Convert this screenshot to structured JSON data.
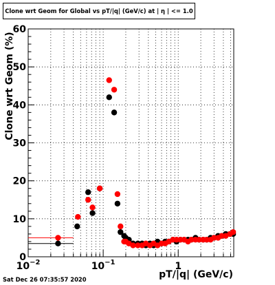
{
  "chart_data": {
    "type": "scatter",
    "title": "Clone wrt Geom for Global vs pT/|q| (GeV/c) at | η | <= 1.0",
    "xlabel": "pT/|q| (GeV/c)",
    "ylabel": "Clone wrt Geom (%)",
    "x_scale": "log",
    "xlim": [
      0.01,
      5.5
    ],
    "ylim": [
      0,
      60
    ],
    "grid": true,
    "y_ticks": [
      0,
      10,
      20,
      30,
      40,
      50,
      60
    ],
    "y_tick_labels": [
      "0",
      "10",
      "20",
      "30",
      "40",
      "50",
      "60"
    ],
    "x_major_ticks": [
      0.01,
      0.1,
      1
    ],
    "x_tick_labels": [
      {
        "base": "10",
        "exp": "−2"
      },
      {
        "base": "10",
        "exp": "−1"
      },
      {
        "base": "1",
        "exp": ""
      }
    ],
    "series": [
      {
        "color": "#000000",
        "points": [
          {
            "x": 0.025,
            "y": 3.5,
            "xerr": [
              0.01,
              0.04
            ]
          },
          {
            "x": 0.045,
            "y": 8.0
          },
          {
            "x": 0.063,
            "y": 17.0
          },
          {
            "x": 0.072,
            "y": 11.5
          },
          {
            "x": 0.09,
            "y": 18.0
          },
          {
            "x": 0.12,
            "y": 42.0
          },
          {
            "x": 0.14,
            "y": 38.0
          },
          {
            "x": 0.155,
            "y": 14.0
          },
          {
            "x": 0.17,
            "y": 6.5
          },
          {
            "x": 0.19,
            "y": 5.5
          },
          {
            "x": 0.2,
            "y": 5.0
          },
          {
            "x": 0.22,
            "y": 4.5
          },
          {
            "x": 0.25,
            "y": 3.5
          },
          {
            "x": 0.29,
            "y": 3.5
          },
          {
            "x": 0.33,
            "y": 3.5
          },
          {
            "x": 0.37,
            "y": 3.0
          },
          {
            "x": 0.42,
            "y": 3.5
          },
          {
            "x": 0.47,
            "y": 3.0
          },
          {
            "x": 0.53,
            "y": 4.0
          },
          {
            "x": 0.6,
            "y": 3.5
          },
          {
            "x": 0.67,
            "y": 4.0
          },
          {
            "x": 0.75,
            "y": 4.0
          },
          {
            "x": 0.85,
            "y": 4.5
          },
          {
            "x": 0.95,
            "y": 4.0
          },
          {
            "x": 1.07,
            "y": 4.5
          },
          {
            "x": 1.2,
            "y": 4.5
          },
          {
            "x": 1.35,
            "y": 4.5
          },
          {
            "x": 1.5,
            "y": 4.5
          },
          {
            "x": 1.7,
            "y": 5.0
          },
          {
            "x": 1.9,
            "y": 4.5
          },
          {
            "x": 2.15,
            "y": 4.5
          },
          {
            "x": 2.4,
            "y": 4.5
          },
          {
            "x": 2.7,
            "y": 5.0
          },
          {
            "x": 3.0,
            "y": 5.0
          },
          {
            "x": 3.4,
            "y": 5.5
          },
          {
            "x": 3.8,
            "y": 5.5
          },
          {
            "x": 4.3,
            "y": 6.0
          },
          {
            "x": 4.9,
            "y": 6.0
          },
          {
            "x": 5.4,
            "y": 6.0
          }
        ]
      },
      {
        "color": "#ff0000",
        "points": [
          {
            "x": 0.025,
            "y": 5.0,
            "xerr": [
              0.01,
              0.04
            ]
          },
          {
            "x": 0.046,
            "y": 10.5
          },
          {
            "x": 0.063,
            "y": 15.0
          },
          {
            "x": 0.072,
            "y": 13.0
          },
          {
            "x": 0.09,
            "y": 18.0
          },
          {
            "x": 0.12,
            "y": 46.5
          },
          {
            "x": 0.14,
            "y": 44.0
          },
          {
            "x": 0.155,
            "y": 16.5
          },
          {
            "x": 0.17,
            "y": 8.0
          },
          {
            "x": 0.19,
            "y": 4.0
          },
          {
            "x": 0.2,
            "y": 4.0
          },
          {
            "x": 0.22,
            "y": 3.5
          },
          {
            "x": 0.25,
            "y": 3.0
          },
          {
            "x": 0.29,
            "y": 3.0
          },
          {
            "x": 0.33,
            "y": 3.0
          },
          {
            "x": 0.37,
            "y": 3.5
          },
          {
            "x": 0.42,
            "y": 3.0
          },
          {
            "x": 0.47,
            "y": 3.5
          },
          {
            "x": 0.53,
            "y": 3.0
          },
          {
            "x": 0.6,
            "y": 3.5
          },
          {
            "x": 0.67,
            "y": 3.5
          },
          {
            "x": 0.75,
            "y": 4.0
          },
          {
            "x": 0.85,
            "y": 4.5
          },
          {
            "x": 0.95,
            "y": 4.5
          },
          {
            "x": 1.07,
            "y": 4.5
          },
          {
            "x": 1.2,
            "y": 4.5
          },
          {
            "x": 1.35,
            "y": 4.0
          },
          {
            "x": 1.5,
            "y": 4.5
          },
          {
            "x": 1.7,
            "y": 4.5
          },
          {
            "x": 1.9,
            "y": 4.5
          },
          {
            "x": 2.15,
            "y": 4.5
          },
          {
            "x": 2.4,
            "y": 4.5
          },
          {
            "x": 2.7,
            "y": 4.5
          },
          {
            "x": 3.0,
            "y": 5.0
          },
          {
            "x": 3.4,
            "y": 5.0
          },
          {
            "x": 3.8,
            "y": 5.5
          },
          {
            "x": 4.3,
            "y": 5.5
          },
          {
            "x": 4.9,
            "y": 6.0
          },
          {
            "x": 5.4,
            "y": 6.5
          }
        ]
      }
    ]
  },
  "timestamp": "Sat Dec 26 07:35:57 2020"
}
